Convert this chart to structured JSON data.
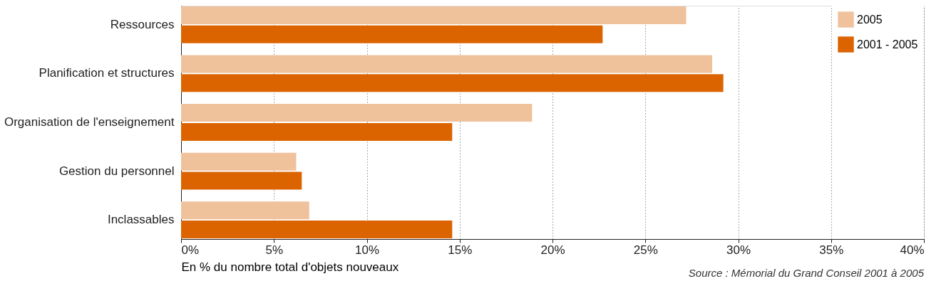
{
  "chart_data": {
    "type": "bar",
    "orientation": "horizontal",
    "xlabel": "En % du nombre total d'objets nouveaux",
    "categories": [
      "Ressources",
      "Planification et structures",
      "Organisation de l'enseignement",
      "Gestion du personnel",
      "Inclassables"
    ],
    "series": [
      {
        "name": "2005",
        "color": "#f0c29c",
        "values": [
          27.2,
          28.6,
          18.9,
          6.2,
          6.9
        ]
      },
      {
        "name": "2001 - 2005",
        "color": "#dc6400",
        "values": [
          22.7,
          29.2,
          14.6,
          6.5,
          14.6
        ]
      }
    ],
    "xlim": [
      0,
      40
    ],
    "xticks": [
      {
        "value": 0,
        "label": "0%"
      },
      {
        "value": 5,
        "label": "5%"
      },
      {
        "value": 10,
        "label": "10%"
      },
      {
        "value": 15,
        "label": "15%"
      },
      {
        "value": 20,
        "label": "20%"
      },
      {
        "value": 25,
        "label": "25%"
      },
      {
        "value": 30,
        "label": "30%"
      },
      {
        "value": 35,
        "label": "35%"
      },
      {
        "value": 40,
        "label": "40%"
      }
    ],
    "grid": "x",
    "legend": "top right",
    "annotations": [
      "Source : Mémorial du Grand Conseil 2001 à 2005"
    ]
  }
}
